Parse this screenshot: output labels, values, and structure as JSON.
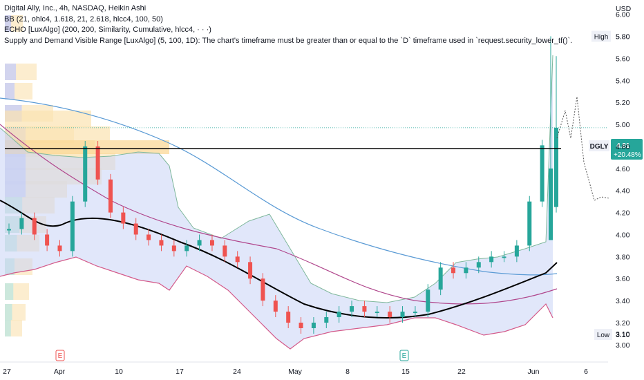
{
  "legend": {
    "title": "Digital Ally, Inc., 4h, NASDAQ, Heikin Ashi",
    "bb": "BB (21, ohlc4, 1.618, 21, 2.618, hlcc4, 100, 50)",
    "echo": "ECHO [LuxAlgo] (200, 200, Similarity, Cumulative, hlcc4, · · ·)",
    "sdvr": "Supply and Demand Visible Range [LuxAlgo] (5, 100, 1D): The chart's timeframe must be greater than or equal to the `D` timeframe used in `request.security_lower_tf()`."
  },
  "currency": "USD",
  "markers": {
    "high_label": "High",
    "high_value": "5.80",
    "low_label": "Low",
    "low_value": "3.10",
    "symbol": "DGLY",
    "last_price": "4.81",
    "change": "+20.48%",
    "earnings": "E"
  },
  "colors": {
    "up": "#26a69a",
    "down": "#ef5350",
    "ma_black": "#000000",
    "ma_blue": "#5b9bd5",
    "ma_purple": "#b0468c"
  },
  "chart_data": {
    "type": "candlestick",
    "y_ticks": [
      "3.00",
      "3.10",
      "3.20",
      "3.40",
      "3.60",
      "3.80",
      "4.00",
      "4.20",
      "4.40",
      "4.60",
      "4.80",
      "5.00",
      "5.20",
      "5.40",
      "5.60",
      "5.80",
      "6.00"
    ],
    "x_ticks": [
      "27",
      "Apr",
      "10",
      "17",
      "24",
      "May",
      "8",
      "15",
      "22",
      "Jun",
      "6"
    ],
    "ylim": [
      2.9,
      6.05
    ],
    "horizontal_line": 4.78,
    "series_samples": {
      "close_path": [
        4.05,
        4.15,
        4.0,
        3.9,
        3.85,
        4.3,
        4.8,
        4.5,
        4.2,
        4.1,
        4.0,
        3.95,
        3.9,
        3.85,
        3.9,
        3.95,
        3.9,
        3.8,
        3.75,
        3.6,
        3.4,
        3.3,
        3.2,
        3.15,
        3.2,
        3.25,
        3.3,
        3.35,
        3.3,
        3.3,
        3.25,
        3.3,
        3.3,
        3.5,
        3.7,
        3.65,
        3.7,
        3.75,
        3.8,
        3.8,
        3.9,
        4.3,
        4.81
      ]
    }
  }
}
